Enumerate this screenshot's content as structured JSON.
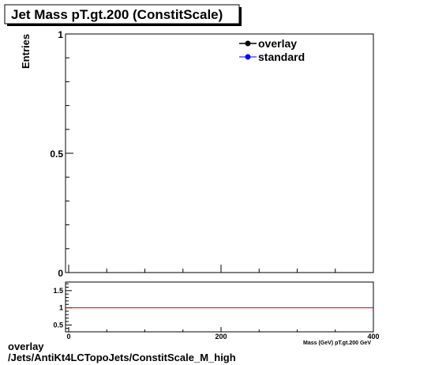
{
  "chart_data": {
    "type": "line",
    "title": "Jet Mass pT.gt.200 (ConstitScale)",
    "ylabel": "Entries",
    "xlabel": "Mass (GeV) pT.gt.200 GeV",
    "xlim": [
      0,
      400
    ],
    "ylim": [
      0,
      1
    ],
    "x_ticks": [
      {
        "value": 0,
        "label": "0"
      },
      {
        "value": 200,
        "label": "200"
      },
      {
        "value": 400,
        "label": "400"
      }
    ],
    "y_ticks": [
      {
        "value": 0,
        "label": "0"
      },
      {
        "value": 0.5,
        "label": "0.5"
      },
      {
        "value": 1,
        "label": "1"
      }
    ],
    "legend_position": "top-right",
    "series": [
      {
        "name": "overlay",
        "color": "#000000",
        "marker": "circle",
        "values": []
      },
      {
        "name": "standard",
        "color": "#0000ff",
        "marker": "circle",
        "values": []
      }
    ],
    "ratio_panel": {
      "ylim": [
        0.3,
        1.75
      ],
      "y_ticks": [
        {
          "value": 0.5,
          "label": "0.5"
        },
        {
          "value": 1,
          "label": "1"
        },
        {
          "value": 1.5,
          "label": "1.5"
        }
      ],
      "reference_line": {
        "value": 1,
        "color": "#cc0000"
      }
    }
  },
  "footer": {
    "line1": "overlay",
    "line2": "/Jets/AntiKt4LCTopoJets/ConstitScale_M_high"
  }
}
